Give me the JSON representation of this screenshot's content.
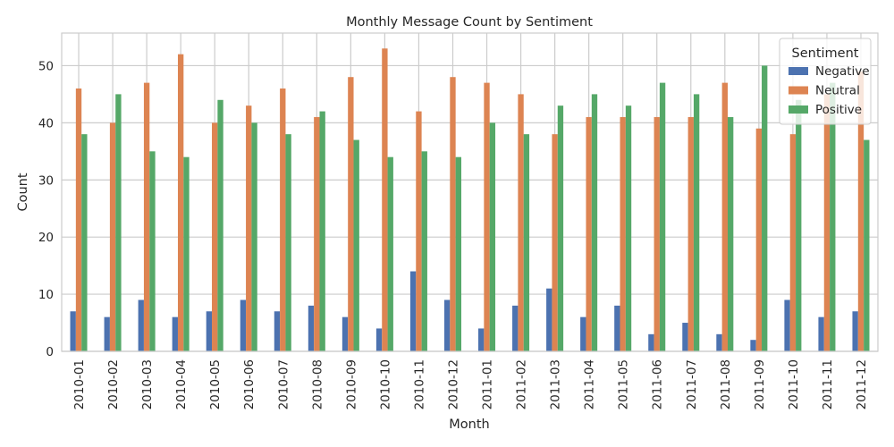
{
  "chart_data": {
    "type": "bar",
    "title": "Monthly Message Count by Sentiment",
    "xlabel": "Month",
    "ylabel": "Count",
    "ylim": [
      0,
      55.7
    ],
    "yticks": [
      0,
      10,
      20,
      30,
      40,
      50
    ],
    "grid": true,
    "legend": {
      "title": "Sentiment",
      "placement": "top-right"
    },
    "categories": [
      "2010-01",
      "2010-02",
      "2010-03",
      "2010-04",
      "2010-05",
      "2010-06",
      "2010-07",
      "2010-08",
      "2010-09",
      "2010-10",
      "2010-11",
      "2010-12",
      "2011-01",
      "2011-02",
      "2011-03",
      "2011-04",
      "2011-05",
      "2011-06",
      "2011-07",
      "2011-08",
      "2011-09",
      "2011-10",
      "2011-11",
      "2011-12"
    ],
    "series": [
      {
        "name": "Negative",
        "color": "#4c72b0",
        "values": [
          7,
          6,
          9,
          6,
          7,
          9,
          7,
          8,
          6,
          4,
          14,
          9,
          4,
          8,
          11,
          6,
          8,
          3,
          5,
          3,
          2,
          9,
          6,
          7
        ]
      },
      {
        "name": "Neutral",
        "color": "#dd8452",
        "values": [
          46,
          40,
          47,
          52,
          40,
          43,
          46,
          41,
          48,
          53,
          42,
          48,
          47,
          45,
          38,
          41,
          41,
          41,
          41,
          47,
          39,
          38,
          45,
          49
        ]
      },
      {
        "name": "Positive",
        "color": "#55a868",
        "values": [
          38,
          45,
          35,
          34,
          44,
          40,
          38,
          42,
          37,
          34,
          35,
          34,
          40,
          38,
          43,
          45,
          43,
          47,
          45,
          41,
          50,
          44,
          47,
          37
        ]
      }
    ]
  }
}
